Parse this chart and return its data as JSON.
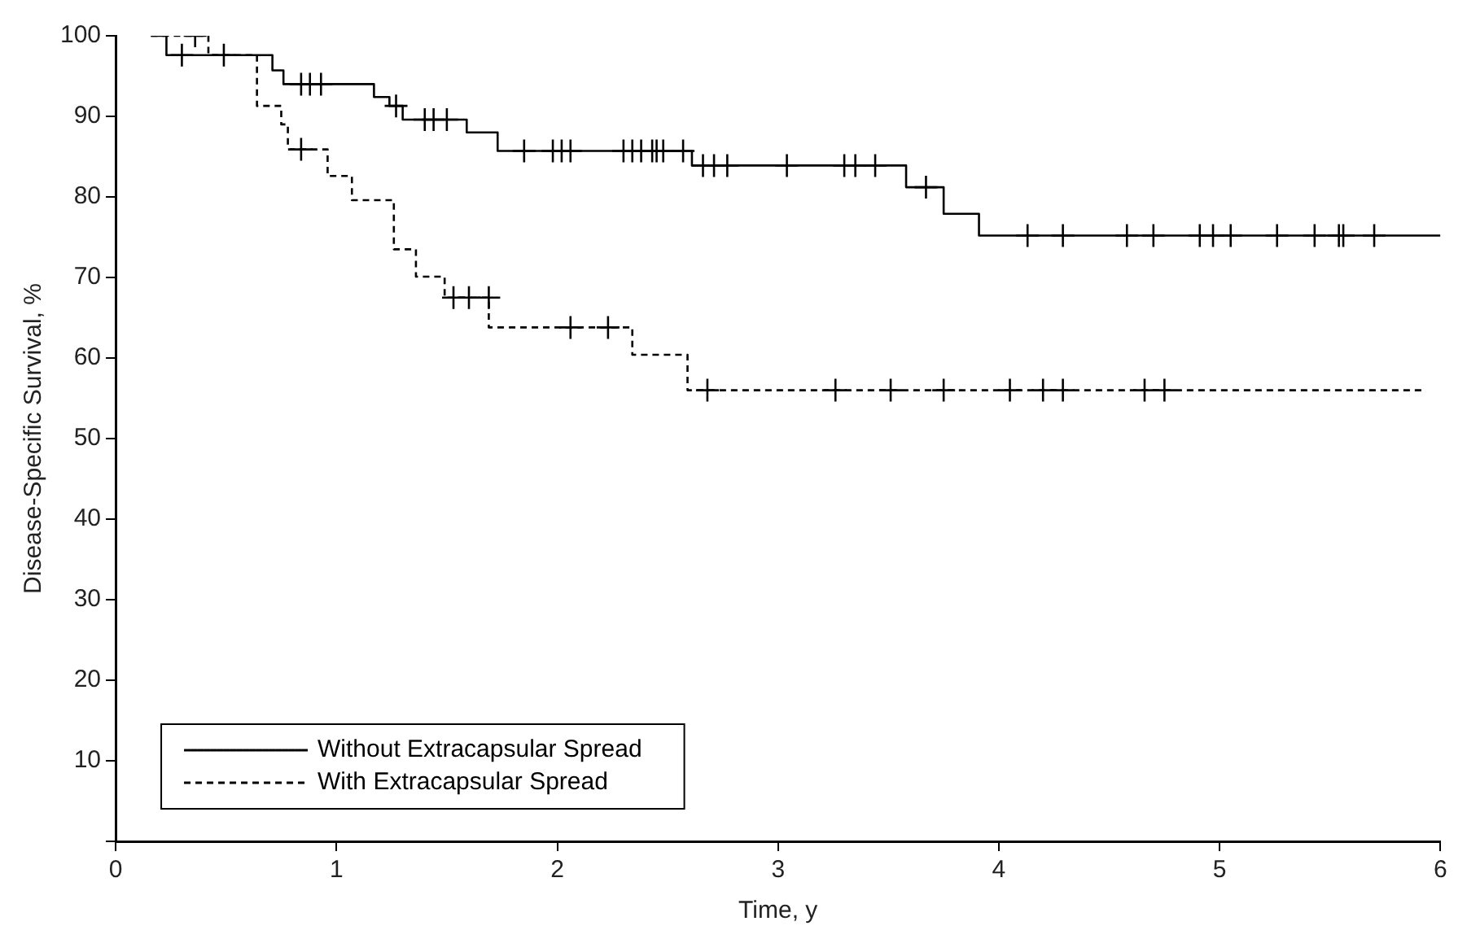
{
  "chart_data": {
    "type": "step",
    "xlabel": "Time, y",
    "ylabel": "Disease-Specific Survival, %",
    "xlim": [
      0,
      6
    ],
    "xticks": [
      0,
      1,
      2,
      3,
      4,
      5,
      6
    ],
    "ylim": [
      0,
      100
    ],
    "yticks": [
      {
        "value": 0,
        "label": null
      },
      10,
      20,
      30,
      40,
      50,
      60,
      70,
      80,
      90,
      100
    ],
    "grid": false,
    "legend": "bottom left",
    "series": [
      {
        "name": "Without Extracapsular Spread",
        "color": "#000000",
        "line_style": "solid",
        "x": [
          0.16,
          0.23,
          0.71,
          0.76,
          1.17,
          1.24,
          1.3,
          1.59,
          1.73,
          2.61,
          3.58,
          3.75,
          3.91,
          6.0
        ],
        "values": [
          100,
          97.6,
          95.7,
          94,
          92.4,
          91.3,
          89.6,
          88,
          85.7,
          83.9,
          81.2,
          77.9,
          75.2,
          75.2
        ]
      },
      {
        "name": "With Extracapsular Spread",
        "color": "#000000",
        "line_style": "dashed",
        "x": [
          0.16,
          0.42,
          0.64,
          0.75,
          0.78,
          0.96,
          1.07,
          1.26,
          1.36,
          1.49,
          1.69,
          2.34,
          2.59,
          5.93
        ],
        "values": [
          100,
          97.6,
          91.3,
          89,
          85.9,
          82.6,
          79.6,
          73.5,
          70.1,
          67.5,
          63.8,
          60.4,
          56,
          56
        ]
      },
      {
        "type": "scatter",
        "color": "#000000",
        "marker": "cross",
        "x": [
          0.3,
          0.49,
          0.84,
          0.88,
          0.93,
          1.27,
          1.4,
          1.44,
          1.5,
          1.85,
          1.98,
          2.02,
          2.06,
          2.3,
          2.34,
          2.38,
          2.43,
          2.45,
          2.48,
          2.57,
          2.66,
          2.71,
          2.77,
          3.04,
          3.3,
          3.35,
          3.44,
          3.67,
          4.13,
          4.29,
          4.58,
          4.7,
          4.91,
          4.97,
          5.05,
          5.26,
          5.43,
          5.54,
          5.56,
          5.7
        ],
        "values": [
          97.6,
          97.6,
          94,
          94,
          94,
          91.3,
          89.6,
          89.6,
          89.6,
          85.7,
          85.7,
          85.7,
          85.7,
          85.7,
          85.7,
          85.7,
          85.7,
          85.7,
          85.7,
          85.7,
          83.9,
          83.9,
          83.9,
          83.9,
          83.9,
          83.9,
          83.9,
          81.2,
          75.2,
          75.2,
          75.2,
          75.2,
          75.2,
          75.2,
          75.2,
          75.2,
          75.2,
          75.2,
          75.2,
          75.2
        ]
      },
      {
        "type": "scatter",
        "color": "#000000",
        "marker": "cross",
        "x": [
          0.36,
          0.84,
          1.53,
          1.6,
          1.69,
          2.06,
          2.23,
          2.68,
          3.26,
          3.51,
          3.75,
          4.05,
          4.2,
          4.29,
          4.66,
          4.75
        ],
        "values": [
          100,
          85.9,
          67.5,
          67.5,
          67.5,
          63.8,
          63.8,
          56,
          56,
          56,
          56,
          56,
          56,
          56,
          56,
          56
        ]
      }
    ]
  }
}
